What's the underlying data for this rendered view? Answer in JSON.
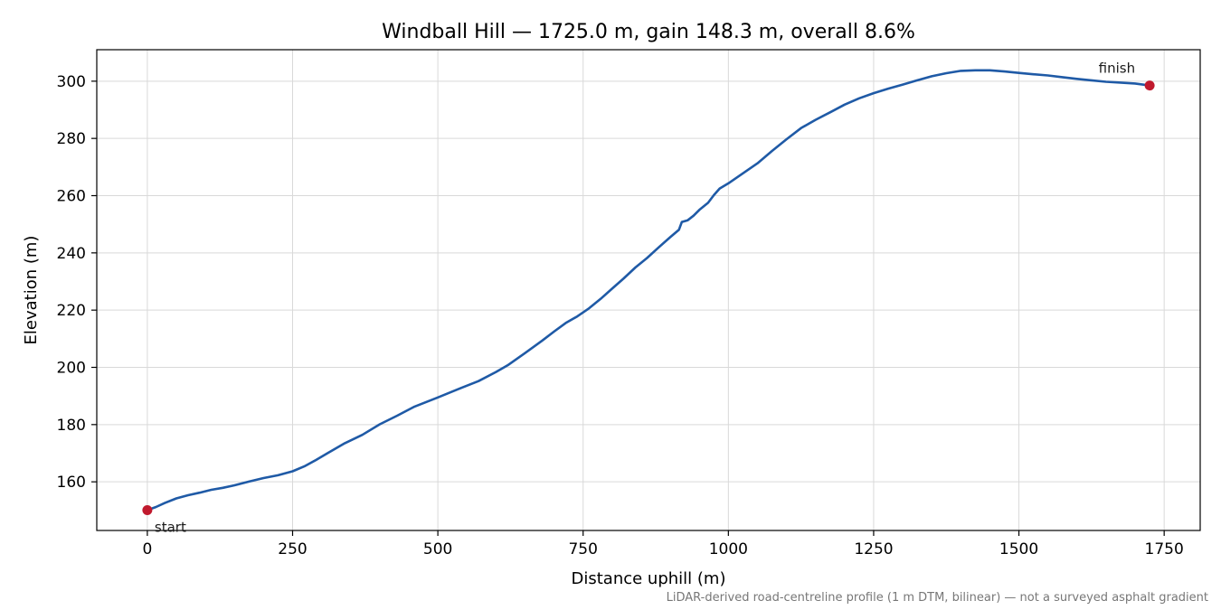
{
  "chart_data": {
    "type": "line",
    "title": "Windball Hill — 1725.0 m, gain 148.3 m, overall 8.6%",
    "xlabel": "Distance uphill (m)",
    "ylabel": "Elevation (m)",
    "xlim": [
      -87,
      1812
    ],
    "ylim": [
      143,
      311
    ],
    "x_ticks": [
      0,
      250,
      500,
      750,
      1000,
      1250,
      1500,
      1750
    ],
    "x_tick_labels": [
      "0",
      "250",
      "500",
      "750",
      "1000",
      "1250",
      "1500",
      "1750"
    ],
    "y_ticks": [
      160,
      180,
      200,
      220,
      240,
      260,
      280,
      300
    ],
    "y_tick_labels": [
      "160",
      "180",
      "200",
      "220",
      "240",
      "260",
      "280",
      "300"
    ],
    "grid": true,
    "line_color": "#1f5aa6",
    "marker_color": "#c0192d",
    "series": [
      {
        "x": [
          0,
          15,
          30,
          50,
          70,
          90,
          110,
          130,
          150,
          175,
          200,
          225,
          250,
          270,
          290,
          310,
          340,
          370,
          400,
          430,
          460,
          500,
          540,
          570,
          600,
          620,
          650,
          680,
          700,
          720,
          740,
          760,
          780,
          800,
          820,
          840,
          860,
          880,
          900,
          915,
          920,
          930,
          940,
          950,
          965,
          975,
          985,
          1000,
          1025,
          1050,
          1075,
          1100,
          1125,
          1150,
          1175,
          1200,
          1225,
          1250,
          1275,
          1300,
          1325,
          1350,
          1375,
          1400,
          1425,
          1450,
          1475,
          1500,
          1525,
          1550,
          1575,
          1600,
          1625,
          1650,
          1675,
          1700,
          1725
        ],
        "y": [
          150.1,
          151.2,
          152.6,
          154.2,
          155.3,
          156.2,
          157.2,
          157.9,
          158.8,
          160.1,
          161.3,
          162.3,
          163.7,
          165.4,
          167.6,
          170.0,
          173.5,
          176.4,
          180.1,
          183.1,
          186.3,
          189.5,
          192.8,
          195.2,
          198.4,
          200.7,
          205.0,
          209.4,
          212.5,
          215.5,
          217.8,
          220.6,
          223.9,
          227.5,
          231.1,
          234.9,
          238.2,
          241.9,
          245.5,
          248.1,
          250.8,
          251.4,
          253.0,
          255.0,
          257.5,
          260.2,
          262.5,
          264.3,
          267.8,
          271.3,
          275.6,
          279.7,
          283.6,
          286.5,
          289.1,
          291.8,
          294.0,
          295.8,
          297.4,
          298.8,
          300.3,
          301.7,
          302.8,
          303.6,
          303.8,
          303.8,
          303.4,
          302.9,
          302.4,
          302.0,
          301.4,
          300.8,
          300.3,
          299.8,
          299.5,
          299.2,
          298.5
        ]
      }
    ],
    "annotations": [
      {
        "label": "start",
        "x": 0,
        "y": 150.1
      },
      {
        "label": "finish",
        "x": 1725,
        "y": 298.5
      }
    ],
    "footnote": "LiDAR-derived road-centreline profile (1 m DTM, bilinear) — not a surveyed asphalt gradient"
  }
}
